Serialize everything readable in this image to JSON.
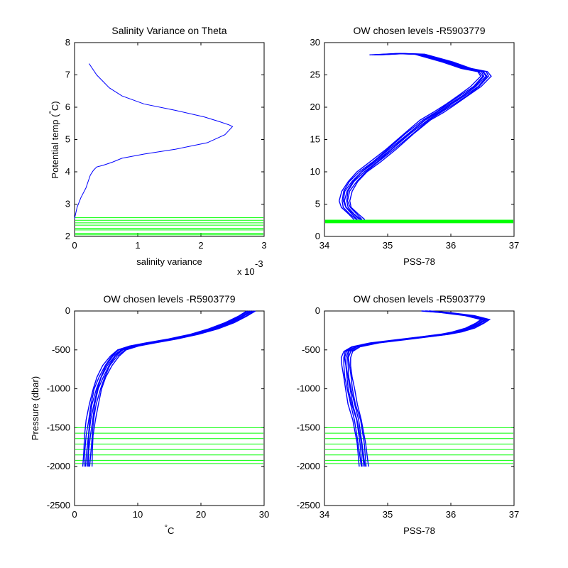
{
  "chart_data": [
    {
      "type": "line",
      "title": "Salinity Variance on Theta",
      "xlabel": "salinity variance",
      "ylabel": "Potential temp (°C)",
      "ylabel_main": "Potential temp (",
      "ylabel_degree": "°",
      "ylabel_close": "C)",
      "x_multiplier": "x 10",
      "x_multiplier_exp": "-3",
      "xlim": [
        0,
        3
      ],
      "ylim": [
        2,
        8
      ],
      "xticks": [
        "0",
        "1",
        "2",
        "3"
      ],
      "yticks": [
        "2",
        "3",
        "4",
        "5",
        "6",
        "7",
        "8"
      ],
      "colors": {
        "series": "#0000ff",
        "levels": "#00ff00"
      },
      "series": [
        {
          "x": [
            0.23,
            0.35,
            0.55,
            0.75,
            1.1,
            1.6,
            2.05,
            2.3,
            2.45,
            2.5,
            2.38,
            2.1,
            1.6,
            1.1,
            0.75,
            0.6,
            0.45,
            0.35,
            0.3,
            0.25,
            0.18,
            0.1,
            0.04,
            0.0
          ],
          "y": [
            7.35,
            7.0,
            6.6,
            6.35,
            6.1,
            5.9,
            5.7,
            5.55,
            5.45,
            5.4,
            5.15,
            4.9,
            4.7,
            4.55,
            4.42,
            4.3,
            4.2,
            4.15,
            4.05,
            3.9,
            3.5,
            3.2,
            2.9,
            2.55
          ]
        }
      ],
      "chosen_levels": [
        2.05,
        2.1,
        2.2,
        2.25,
        2.35,
        2.42,
        2.5,
        2.58
      ]
    },
    {
      "type": "line",
      "title": "OW chosen levels -R5903779",
      "xlabel": "PSS-78",
      "ylabel": "",
      "xlim": [
        34,
        37
      ],
      "ylim": [
        0,
        30
      ],
      "xticks": [
        "34",
        "35",
        "36",
        "37"
      ],
      "yticks": [
        "0",
        "5",
        "10",
        "15",
        "20",
        "25",
        "30"
      ],
      "colors": {
        "series": "#0000ff",
        "levels": "#00ff00"
      },
      "profile": {
        "x": [
          34.55,
          34.45,
          34.35,
          34.32,
          34.35,
          34.45,
          34.6,
          34.8,
          35.05,
          35.35,
          35.6,
          35.8,
          36.0,
          36.2,
          36.4,
          36.55,
          36.5,
          36.25,
          35.95,
          35.5,
          35.2,
          34.8
        ],
        "y": [
          2.6,
          3.5,
          4.5,
          5.5,
          7.0,
          8.5,
          10.0,
          11.5,
          13.5,
          16.0,
          18.0,
          19.2,
          20.5,
          21.8,
          23.2,
          24.8,
          25.5,
          26.0,
          27.0,
          28.2,
          28.3,
          28.1
        ]
      },
      "band_half_width": 0.08,
      "chosen_levels": [
        2.05,
        2.1,
        2.2,
        2.25,
        2.35,
        2.42,
        2.5,
        2.58
      ]
    },
    {
      "type": "line",
      "title": "OW chosen levels -R5903779",
      "xlabel": "°C",
      "xlabel_degree": "°",
      "xlabel_unit": "C",
      "ylabel": "Pressure (dbar)",
      "xlim": [
        0,
        30
      ],
      "ylim": [
        -2500,
        0
      ],
      "xticks": [
        "0",
        "10",
        "20",
        "30"
      ],
      "yticks": [
        "-2500",
        "-2000",
        "-1500",
        "-1000",
        "-500",
        "0"
      ],
      "colors": {
        "series": "#0000ff",
        "levels": "#00ff00"
      },
      "profile": {
        "x": [
          2.0,
          2.1,
          2.3,
          2.6,
          3.0,
          3.6,
          4.3,
          5.2,
          6.3,
          7.5,
          9.5,
          12.0,
          15.5,
          19.0,
          22.0,
          24.5,
          26.5,
          28.0
        ],
        "y": [
          -2000,
          -1800,
          -1600,
          -1400,
          -1200,
          -1000,
          -850,
          -700,
          -580,
          -500,
          -450,
          -410,
          -360,
          -300,
          -230,
          -150,
          -70,
          0
        ]
      },
      "band_half_width": 0.7,
      "chosen_levels": [
        -1500,
        -1570,
        -1640,
        -1710,
        -1780,
        -1850,
        -1920,
        -1960
      ]
    },
    {
      "type": "line",
      "title": "OW chosen levels -R5903779",
      "xlabel": "PSS-78",
      "ylabel": "",
      "xlim": [
        34,
        37
      ],
      "ylim": [
        -2500,
        0
      ],
      "xticks": [
        "34",
        "35",
        "36",
        "37"
      ],
      "yticks": [
        "-2500",
        "-2000",
        "-1500",
        "-1000",
        "-500",
        "0"
      ],
      "colors": {
        "series": "#0000ff",
        "levels": "#00ff00"
      },
      "profile": {
        "x": [
          34.62,
          34.58,
          34.52,
          34.45,
          34.4,
          34.37,
          34.35,
          34.34,
          34.37,
          34.5,
          34.8,
          35.2,
          35.6,
          35.9,
          36.1,
          36.3,
          36.45,
          36.55,
          36.3,
          35.9,
          35.6
        ],
        "y": [
          -2000,
          -1700,
          -1400,
          -1200,
          -1000,
          -850,
          -700,
          -600,
          -520,
          -460,
          -410,
          -370,
          -330,
          -300,
          -270,
          -220,
          -160,
          -110,
          -60,
          -20,
          0
        ]
      },
      "band_half_width": 0.07,
      "chosen_levels": [
        -1500,
        -1570,
        -1640,
        -1710,
        -1780,
        -1850,
        -1920,
        -1960
      ]
    }
  ]
}
